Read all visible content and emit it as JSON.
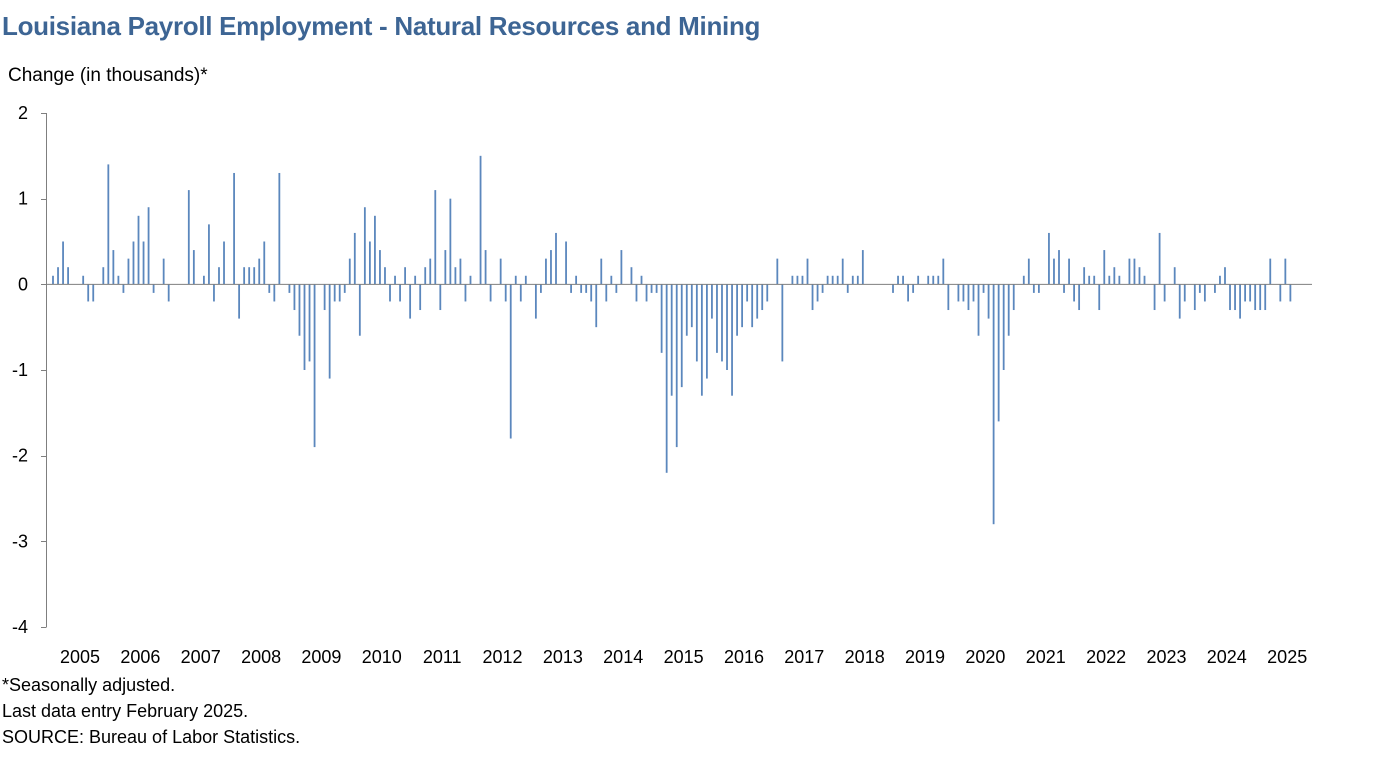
{
  "chart_data": {
    "type": "bar",
    "title": "Louisiana Payroll Employment - Natural Resources and Mining",
    "ylabel": "Change (in thousands)*",
    "xlabel": "",
    "ylim": [
      -4,
      2
    ],
    "yticks": [
      2,
      1,
      0,
      -1,
      -2,
      -3,
      -4
    ],
    "grid": false,
    "bar_color": "#5b87bd",
    "x_tick_labels": [
      "2005",
      "2006",
      "2007",
      "2008",
      "2009",
      "2010",
      "2011",
      "2012",
      "2013",
      "2014",
      "2015",
      "2016",
      "2017",
      "2018",
      "2019",
      "2020",
      "2021",
      "2022",
      "2023",
      "2024",
      "2025"
    ],
    "start": "2005-01",
    "end": "2025-02",
    "frequency": "monthly",
    "values": [
      0.1,
      0.2,
      0.5,
      0.2,
      0.0,
      0.0,
      0.1,
      -0.2,
      -0.2,
      0.0,
      0.2,
      1.4,
      0.4,
      0.1,
      -0.1,
      0.3,
      0.5,
      0.8,
      0.5,
      0.9,
      -0.1,
      0.0,
      0.3,
      -0.2,
      0.0,
      0.0,
      0.0,
      1.1,
      0.4,
      0.0,
      0.1,
      0.7,
      -0.2,
      0.2,
      0.5,
      0.0,
      1.3,
      -0.4,
      0.2,
      0.2,
      0.2,
      0.3,
      0.5,
      -0.1,
      -0.2,
      1.3,
      0.0,
      -0.1,
      -0.3,
      -0.6,
      -1.0,
      -0.9,
      -1.9,
      0.0,
      -0.3,
      -1.1,
      -0.2,
      -0.2,
      -0.1,
      0.3,
      0.6,
      -0.6,
      0.9,
      0.5,
      0.8,
      0.4,
      0.2,
      -0.2,
      0.1,
      -0.2,
      0.2,
      -0.4,
      0.1,
      -0.3,
      0.2,
      0.3,
      1.1,
      -0.3,
      0.4,
      1.0,
      0.2,
      0.3,
      -0.2,
      0.1,
      0.0,
      1.5,
      0.4,
      -0.2,
      0.0,
      0.3,
      -0.2,
      -1.8,
      0.1,
      -0.2,
      0.1,
      0.0,
      -0.4,
      -0.1,
      0.3,
      0.4,
      0.6,
      0.0,
      0.5,
      -0.1,
      0.1,
      -0.1,
      -0.1,
      -0.2,
      -0.5,
      0.3,
      -0.2,
      0.1,
      -0.1,
      0.4,
      0.0,
      0.2,
      -0.2,
      0.1,
      -0.2,
      -0.1,
      -0.1,
      -0.8,
      -2.2,
      -1.3,
      -1.9,
      -1.2,
      -0.6,
      -0.5,
      -0.9,
      -1.3,
      -1.1,
      -0.4,
      -0.8,
      -0.9,
      -1.0,
      -1.3,
      -0.6,
      -0.5,
      -0.2,
      -0.5,
      -0.4,
      -0.3,
      -0.2,
      0.0,
      0.3,
      -0.9,
      0.0,
      0.1,
      0.1,
      0.1,
      0.3,
      -0.3,
      -0.2,
      -0.1,
      0.1,
      0.1,
      0.1,
      0.3,
      -0.1,
      0.1,
      0.1,
      0.4,
      0.0,
      0.0,
      0.0,
      0.0,
      0.0,
      -0.1,
      0.1,
      0.1,
      -0.2,
      -0.1,
      0.1,
      0.0,
      0.1,
      0.1,
      0.1,
      0.3,
      -0.3,
      0.0,
      -0.2,
      -0.2,
      -0.3,
      -0.2,
      -0.6,
      -0.1,
      -0.4,
      -2.8,
      -1.6,
      -1.0,
      -0.6,
      -0.3,
      0.0,
      0.1,
      0.3,
      -0.1,
      -0.1,
      0.0,
      0.6,
      0.3,
      0.4,
      -0.1,
      0.3,
      -0.2,
      -0.3,
      0.2,
      0.1,
      0.1,
      -0.3,
      0.4,
      0.1,
      0.2,
      0.1,
      0.0,
      0.3,
      0.3,
      0.2,
      0.1,
      0.0,
      -0.3,
      0.6,
      -0.2,
      0.0,
      0.2,
      -0.4,
      -0.2,
      0.0,
      -0.3,
      -0.1,
      -0.2,
      0.0,
      -0.1,
      0.1,
      0.2,
      -0.3,
      -0.3,
      -0.4,
      -0.2,
      -0.2,
      -0.3,
      -0.3,
      -0.3,
      0.3,
      0.0,
      -0.2,
      0.3,
      -0.2,
      0.0,
      0.0,
      0.0,
      0.0,
      0.0,
      0.0,
      0.0
    ]
  },
  "notes": {
    "line1": "*Seasonally adjusted.",
    "line2": "Last data entry February 2025.",
    "line3": "SOURCE: Bureau of Labor Statistics."
  }
}
